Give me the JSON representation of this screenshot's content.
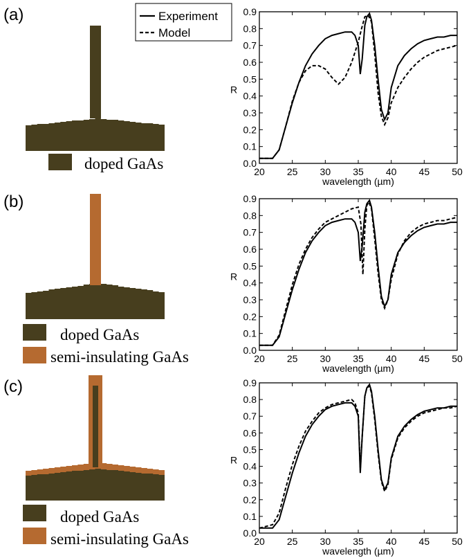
{
  "colors": {
    "doped": "#473e1e",
    "semi": "#b56a30"
  },
  "panels": [
    {
      "label": "(a)",
      "legend": [
        {
          "key": "doped",
          "text": "doped GaAs"
        }
      ],
      "structure": "doped-post"
    },
    {
      "label": "(b)",
      "legend": [
        {
          "key": "doped",
          "text": "doped GaAs"
        },
        {
          "key": "semi",
          "text": "semi-insulating GaAs"
        }
      ],
      "structure": "semi-post"
    },
    {
      "label": "(c)",
      "legend": [
        {
          "key": "doped",
          "text": "doped GaAs"
        },
        {
          "key": "semi",
          "text": "semi-insulating GaAs"
        }
      ],
      "structure": "doped-core-semi-shell"
    }
  ],
  "chart_legend": [
    {
      "name": "Experiment",
      "style": "solid"
    },
    {
      "name": "Model",
      "style": "dashed"
    }
  ],
  "chart_data": [
    {
      "type": "line",
      "xlabel": "wavelength (µm)",
      "ylabel": "R",
      "xlim": [
        20,
        50
      ],
      "ylim": [
        0,
        0.9
      ],
      "xticks": [
        20,
        25,
        30,
        35,
        40,
        45,
        50
      ],
      "yticks": [
        0,
        0.1,
        0.2,
        0.3,
        0.4,
        0.5,
        0.6,
        0.7,
        0.8,
        0.9
      ],
      "series": [
        {
          "name": "Experiment",
          "x": [
            20,
            22,
            23,
            24,
            25,
            26,
            27,
            28,
            29,
            30,
            31,
            32,
            33,
            34,
            34.5,
            35,
            35.3,
            35.6,
            36,
            36.3,
            36.7,
            37,
            37.5,
            38,
            38.5,
            39,
            39.5,
            40,
            41,
            42,
            43,
            44,
            45,
            46,
            47,
            48,
            49,
            50
          ],
          "y": [
            0.03,
            0.03,
            0.08,
            0.22,
            0.36,
            0.48,
            0.58,
            0.65,
            0.7,
            0.74,
            0.76,
            0.77,
            0.78,
            0.78,
            0.76,
            0.7,
            0.53,
            0.62,
            0.82,
            0.87,
            0.89,
            0.85,
            0.7,
            0.5,
            0.32,
            0.26,
            0.3,
            0.45,
            0.58,
            0.64,
            0.68,
            0.71,
            0.73,
            0.74,
            0.75,
            0.75,
            0.76,
            0.76
          ]
        },
        {
          "name": "Model",
          "x": [
            20,
            22,
            23,
            24,
            25,
            26,
            27,
            28,
            29,
            30,
            31,
            32,
            33,
            34,
            35,
            35.5,
            36,
            36.5,
            37,
            37.5,
            38,
            38.5,
            39,
            39.5,
            40,
            41,
            42,
            43,
            44,
            45,
            46,
            47,
            48,
            49,
            50
          ],
          "y": [
            0.03,
            0.03,
            0.08,
            0.22,
            0.37,
            0.48,
            0.55,
            0.58,
            0.58,
            0.56,
            0.51,
            0.47,
            0.51,
            0.6,
            0.72,
            0.8,
            0.87,
            0.88,
            0.84,
            0.65,
            0.42,
            0.28,
            0.23,
            0.27,
            0.36,
            0.45,
            0.51,
            0.56,
            0.6,
            0.63,
            0.65,
            0.67,
            0.68,
            0.69,
            0.7
          ]
        }
      ]
    },
    {
      "type": "line",
      "xlabel": "wavelength (µm)",
      "ylabel": "R",
      "xlim": [
        20,
        50
      ],
      "ylim": [
        0,
        0.9
      ],
      "xticks": [
        20,
        25,
        30,
        35,
        40,
        45,
        50
      ],
      "yticks": [
        0,
        0.1,
        0.2,
        0.3,
        0.4,
        0.5,
        0.6,
        0.7,
        0.8,
        0.9
      ],
      "series": [
        {
          "name": "Experiment",
          "x": [
            20,
            22,
            23,
            24,
            25,
            26,
            27,
            28,
            29,
            30,
            31,
            32,
            33,
            34,
            34.5,
            35,
            35.3,
            35.6,
            36,
            36.3,
            36.7,
            37,
            37.5,
            38,
            38.5,
            39,
            39.5,
            40,
            41,
            42,
            43,
            44,
            45,
            46,
            47,
            48,
            49,
            50
          ],
          "y": [
            0.03,
            0.03,
            0.08,
            0.22,
            0.36,
            0.48,
            0.58,
            0.65,
            0.7,
            0.74,
            0.76,
            0.77,
            0.78,
            0.78,
            0.76,
            0.7,
            0.53,
            0.62,
            0.82,
            0.87,
            0.89,
            0.85,
            0.7,
            0.5,
            0.32,
            0.26,
            0.3,
            0.45,
            0.58,
            0.64,
            0.68,
            0.71,
            0.73,
            0.74,
            0.75,
            0.75,
            0.76,
            0.76
          ]
        },
        {
          "name": "Model",
          "x": [
            20,
            22,
            23,
            24,
            25,
            26,
            27,
            28,
            29,
            30,
            31,
            32,
            33,
            34,
            35,
            35.4,
            35.7,
            36,
            36.3,
            36.6,
            37,
            37.5,
            38,
            38.5,
            39,
            39.5,
            40,
            41,
            42,
            43,
            44,
            45,
            46,
            47,
            48,
            49,
            50
          ],
          "y": [
            0.03,
            0.03,
            0.09,
            0.24,
            0.39,
            0.51,
            0.6,
            0.67,
            0.72,
            0.76,
            0.78,
            0.8,
            0.82,
            0.84,
            0.85,
            0.75,
            0.45,
            0.72,
            0.86,
            0.88,
            0.84,
            0.66,
            0.46,
            0.3,
            0.25,
            0.3,
            0.42,
            0.57,
            0.65,
            0.7,
            0.73,
            0.75,
            0.76,
            0.77,
            0.77,
            0.78,
            0.79
          ]
        }
      ]
    },
    {
      "type": "line",
      "xlabel": "wavelength (µm)",
      "ylabel": "R",
      "xlim": [
        20,
        50
      ],
      "ylim": [
        0,
        0.9
      ],
      "xticks": [
        20,
        25,
        30,
        35,
        40,
        45,
        50
      ],
      "yticks": [
        0,
        0.1,
        0.2,
        0.3,
        0.4,
        0.5,
        0.6,
        0.7,
        0.8,
        0.9
      ],
      "series": [
        {
          "name": "Experiment",
          "x": [
            20,
            22,
            23,
            24,
            25,
            26,
            27,
            28,
            29,
            30,
            31,
            32,
            33,
            34,
            34.5,
            35,
            35.3,
            35.6,
            36,
            36.3,
            36.7,
            37,
            37.5,
            38,
            38.5,
            39,
            39.5,
            40,
            41,
            42,
            43,
            44,
            45,
            46,
            47,
            48,
            49,
            50
          ],
          "y": [
            0.03,
            0.03,
            0.08,
            0.22,
            0.36,
            0.48,
            0.58,
            0.65,
            0.7,
            0.74,
            0.76,
            0.77,
            0.78,
            0.78,
            0.76,
            0.7,
            0.36,
            0.58,
            0.82,
            0.87,
            0.89,
            0.85,
            0.7,
            0.5,
            0.32,
            0.26,
            0.3,
            0.45,
            0.58,
            0.64,
            0.68,
            0.71,
            0.73,
            0.74,
            0.75,
            0.75,
            0.76,
            0.76
          ]
        },
        {
          "name": "Model",
          "x": [
            20,
            22,
            23,
            24,
            25,
            26,
            27,
            28,
            29,
            30,
            31,
            32,
            33,
            34,
            34.5,
            35,
            35.3,
            35.6,
            36,
            36.3,
            36.7,
            37,
            37.5,
            38,
            38.5,
            39,
            39.5,
            40,
            41,
            42,
            43,
            44,
            45,
            46,
            47,
            48,
            49,
            50
          ],
          "y": [
            0.03,
            0.05,
            0.12,
            0.27,
            0.41,
            0.52,
            0.61,
            0.67,
            0.72,
            0.75,
            0.77,
            0.78,
            0.79,
            0.8,
            0.78,
            0.72,
            0.38,
            0.58,
            0.82,
            0.87,
            0.88,
            0.84,
            0.68,
            0.48,
            0.31,
            0.25,
            0.29,
            0.44,
            0.57,
            0.63,
            0.67,
            0.7,
            0.72,
            0.73,
            0.74,
            0.75,
            0.75,
            0.76
          ]
        }
      ]
    }
  ]
}
